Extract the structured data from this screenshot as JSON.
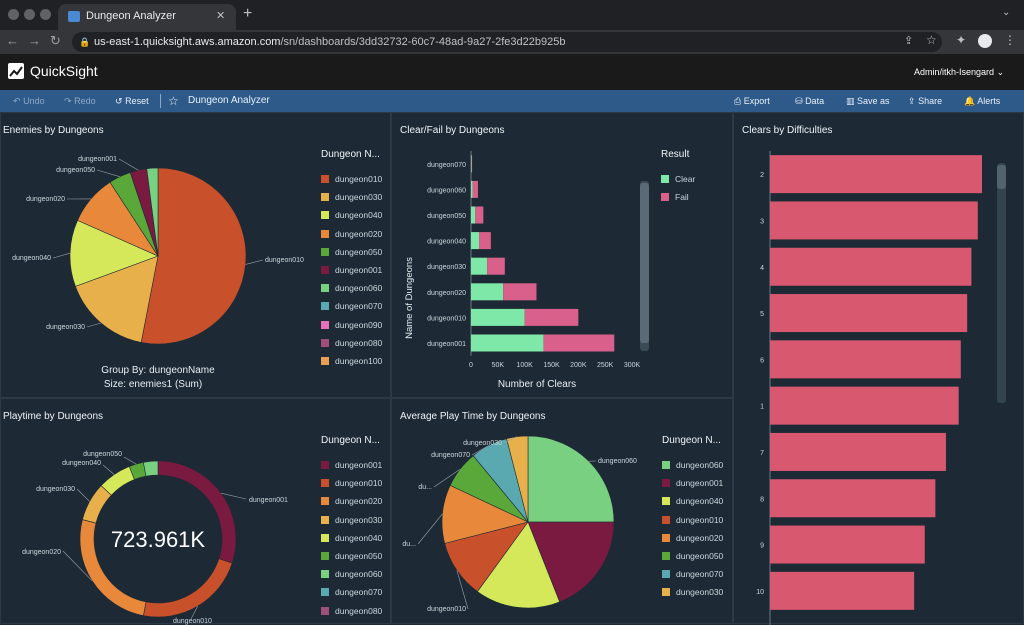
{
  "browser": {
    "tab_title": "Dungeon Analyzer",
    "new_tab": "+",
    "url_host": "us-east-1.quicksight.aws.amazon.com",
    "url_path": "/sn/dashboards/3dd32732-60c7-48ad-9a27-2fe3d22b925b"
  },
  "header": {
    "brand": "QuickSight",
    "user": "Admin/itkh-Isengard"
  },
  "toolbar": {
    "undo": "Undo",
    "redo": "Redo",
    "reset": "Reset",
    "dashboard_title": "Dungeon Analyzer",
    "export": "Export",
    "data": "Data",
    "save_as": "Save as",
    "share": "Share",
    "alerts": "Alerts"
  },
  "colors": {
    "dungeon010": "#c8502a",
    "dungeon030": "#e8b04a",
    "dungeon040": "#d4e85a",
    "dungeon020": "#e8883a",
    "dungeon050": "#5aa83a",
    "dungeon001": "#7a1a40",
    "dungeon060": "#78d080",
    "dungeon070": "#5aa8b0",
    "dungeon090": "#e870b8",
    "dungeon080": "#a05078",
    "dungeon100": "#e8a050",
    "clear": "#7ee8a8",
    "fail": "#d8608a",
    "bar": "#d85870"
  },
  "panels": {
    "enemies": {
      "title": "Enemies by Dungeons",
      "legend_title": "Dungeon N...",
      "group_by": "Group By: dungeonName",
      "size": "Size: enemies1 (Sum)",
      "legend": [
        "dungeon010",
        "dungeon030",
        "dungeon040",
        "dungeon020",
        "dungeon050",
        "dungeon001",
        "dungeon060",
        "dungeon070",
        "dungeon090",
        "dungeon080",
        "dungeon100"
      ],
      "slice_labels": [
        "dungeon010",
        "dungeon030",
        "dungeon040",
        "dungeon020",
        "dungeon050",
        "dungeon001"
      ]
    },
    "clearfail": {
      "title": "Clear/Fail by Dungeons",
      "legend_title": "Result",
      "legend": [
        "Clear",
        "Fail"
      ],
      "ylabel": "Name of Dungeons",
      "xlabel": "Number of Clears",
      "xticks": [
        "0",
        "50K",
        "100K",
        "150K",
        "200K",
        "250K",
        "300K"
      ]
    },
    "difficulty": {
      "title": "Clears by Difficulties"
    },
    "playtime": {
      "title": "Playtime by Dungeons",
      "legend_title": "Dungeon N...",
      "total": "723.961K",
      "legend": [
        "dungeon001",
        "dungeon010",
        "dungeon020",
        "dungeon030",
        "dungeon040",
        "dungeon050",
        "dungeon060",
        "dungeon070",
        "dungeon080"
      ],
      "slice_labels": [
        "dungeon050",
        "dungeon040",
        "dungeon030",
        "dungeon020",
        "dungeon001",
        "dungeon010"
      ]
    },
    "avgplay": {
      "title": "Average Play Time by Dungeons",
      "legend_title": "Dungeon N...",
      "legend": [
        "dungeon060",
        "dungeon001",
        "dungeon040",
        "dungeon010",
        "dungeon020",
        "dungeon050",
        "dungeon070",
        "dungeon030"
      ],
      "slice_labels": [
        "dungeon030",
        "dungeon070",
        "dungeon060",
        "du...",
        "du...",
        "dungeon010"
      ]
    }
  },
  "chart_data": [
    {
      "type": "pie",
      "title": "Enemies by Dungeons",
      "categories": [
        "dungeon010",
        "dungeon030",
        "dungeon040",
        "dungeon020",
        "dungeon050",
        "dungeon001",
        "dungeon060"
      ],
      "values": [
        52,
        16,
        12,
        9,
        4,
        3,
        2
      ]
    },
    {
      "type": "bar",
      "title": "Clear/Fail by Dungeons",
      "orientation": "horizontal",
      "stacked": true,
      "categories": [
        "dungeon070",
        "dungeon060",
        "dungeon050",
        "dungeon040",
        "dungeon030",
        "dungeon020",
        "dungeon010",
        "dungeon001"
      ],
      "series": [
        {
          "name": "Clear",
          "values": [
            1000,
            3000,
            8000,
            15000,
            30000,
            60000,
            100000,
            135000
          ]
        },
        {
          "name": "Fail",
          "values": [
            1000,
            10000,
            15000,
            22000,
            33000,
            62000,
            100000,
            132000
          ]
        }
      ],
      "xlim": [
        0,
        300000
      ],
      "xlabel": "Number of Clears",
      "ylabel": "Name of Dungeons"
    },
    {
      "type": "bar",
      "title": "Clears by Difficulties",
      "orientation": "horizontal",
      "categories": [
        "2",
        "3",
        "4",
        "5",
        "6",
        "1",
        "7",
        "8",
        "9",
        "10"
      ],
      "values": [
        100,
        98,
        95,
        93,
        90,
        89,
        83,
        78,
        73,
        68
      ]
    },
    {
      "type": "pie",
      "title": "Playtime by Dungeons",
      "donut": true,
      "total": "723.961K",
      "categories": [
        "dungeon001",
        "dungeon010",
        "dungeon020",
        "dungeon030",
        "dungeon040",
        "dungeon050",
        "dungeon060"
      ],
      "values": [
        30,
        23,
        26,
        8,
        7,
        3,
        3
      ]
    },
    {
      "type": "pie",
      "title": "Average Play Time by Dungeons",
      "categories": [
        "dungeon060",
        "dungeon001",
        "dungeon040",
        "dungeon010",
        "dungeon020",
        "dungeon050",
        "dungeon070",
        "dungeon030"
      ],
      "values": [
        25,
        19,
        16,
        11,
        11,
        7,
        7,
        4
      ]
    }
  ]
}
